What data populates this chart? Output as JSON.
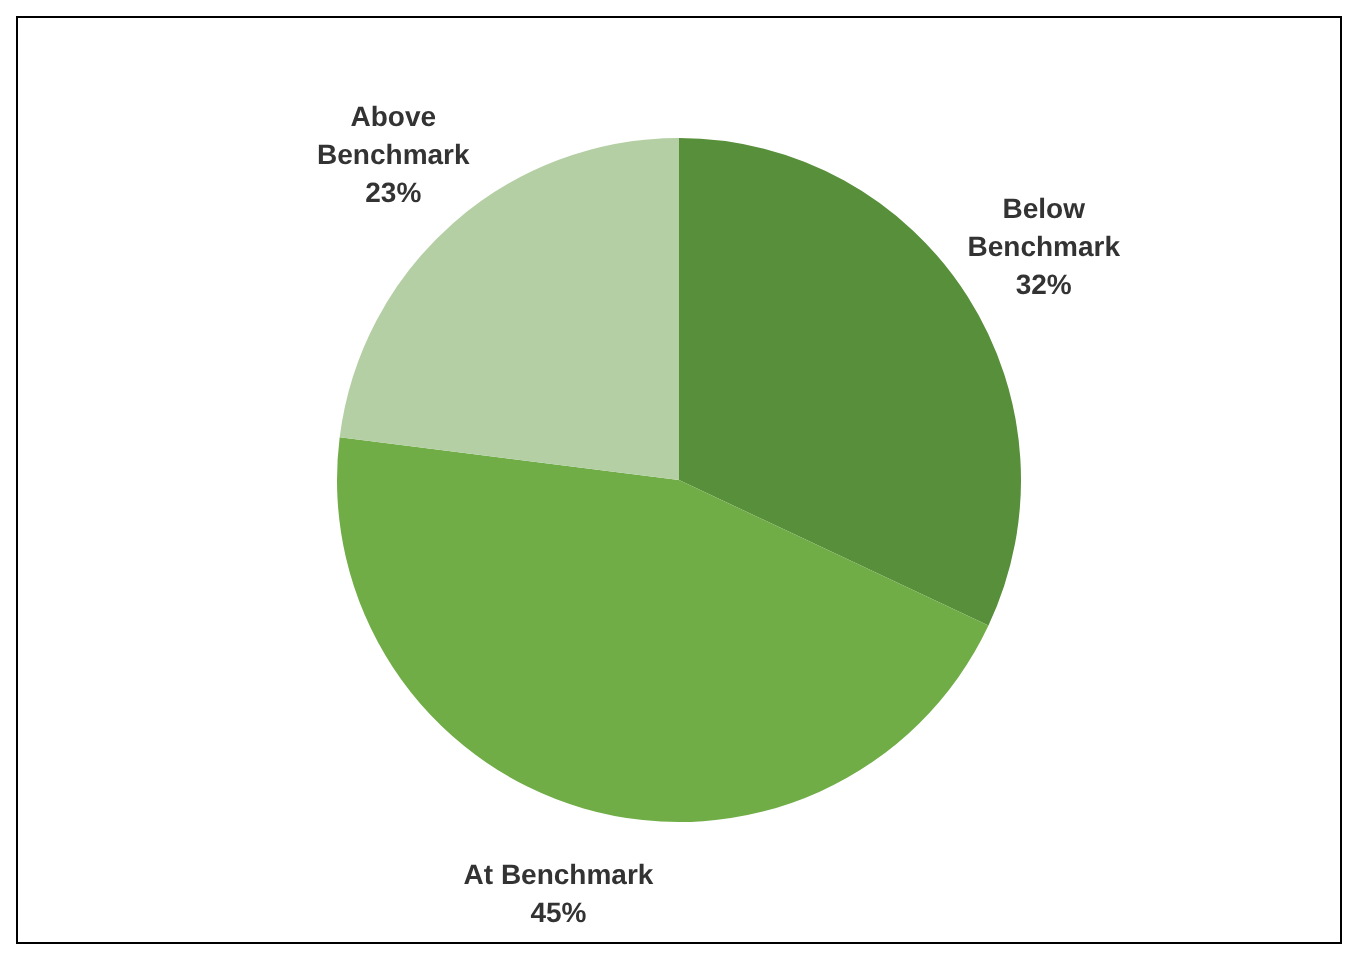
{
  "chart_data": {
    "type": "pie",
    "categories": [
      "Below Benchmark",
      "At Benchmark",
      "Above Benchmark"
    ],
    "values": [
      32,
      45,
      23
    ],
    "colors": [
      "#578f3a",
      "#70ad47",
      "#b4cfa4"
    ],
    "value_labels": [
      "32%",
      "45%",
      "23%"
    ],
    "legend": false
  }
}
